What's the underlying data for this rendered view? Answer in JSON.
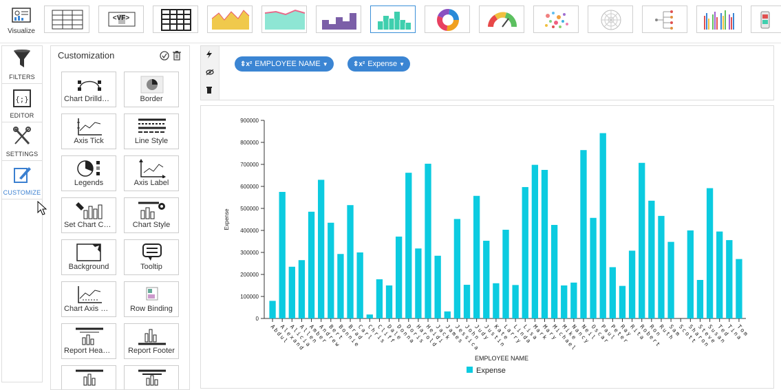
{
  "toolbar": {
    "visualize_label": "Visualize",
    "chart_thumbnails": [
      "table-icon",
      "vf-icon",
      "grid-table-icon",
      "area-chart-icon",
      "stream-chart-icon",
      "step-chart-icon",
      "histogram-icon",
      "donut-chart-icon",
      "gauge-icon",
      "bubble-chart-icon",
      "radial-chart-icon",
      "tree-chart-icon",
      "multi-bar-icon",
      "mobile-icon"
    ],
    "vf_text": "<VF>"
  },
  "nav": {
    "items": [
      {
        "label": "FILTERS",
        "icon": "funnel-icon"
      },
      {
        "label": "EDITOR",
        "icon": "code-braces-icon"
      },
      {
        "label": "SETTINGS",
        "icon": "tools-icon"
      },
      {
        "label": "CUSTOMIZE",
        "icon": "customize-icon"
      }
    ]
  },
  "customization": {
    "title": "Customization",
    "tiles": [
      {
        "label": "Chart Drilldown",
        "icon": "drilldown-icon"
      },
      {
        "label": "Border",
        "icon": "border-icon"
      },
      {
        "label": "Axis Tick",
        "icon": "axis-tick-icon"
      },
      {
        "label": "Line Style",
        "icon": "line-style-icon"
      },
      {
        "label": "Legends",
        "icon": "legends-icon"
      },
      {
        "label": "Axis Label",
        "icon": "axis-label-icon"
      },
      {
        "label": "Set Chart Color",
        "icon": "chart-color-icon"
      },
      {
        "label": "Chart Style",
        "icon": "chart-style-icon"
      },
      {
        "label": "Background",
        "icon": "background-icon"
      },
      {
        "label": "Tooltip",
        "icon": "tooltip-icon"
      },
      {
        "label": "Chart Axis Range",
        "icon": "axis-range-icon"
      },
      {
        "label": "Row Binding",
        "icon": "row-binding-icon"
      },
      {
        "label": "Report Header",
        "icon": "report-header-icon"
      },
      {
        "label": "Report Footer",
        "icon": "report-footer-icon"
      },
      {
        "label": "",
        "icon": "report-icon"
      },
      {
        "label": "",
        "icon": "report-icon"
      }
    ]
  },
  "fields": {
    "pills": [
      {
        "label": "EMPLOYEE NAME",
        "symbol": "x²"
      },
      {
        "label": "Expense",
        "symbol": "x²"
      }
    ]
  },
  "colors": {
    "accent": "#3b85d3",
    "bar": "#0ccbe0"
  },
  "chart_data": {
    "type": "bar",
    "title": "",
    "xlabel": "EMPLOYEE NAME",
    "ylabel": "Expense",
    "ylim": [
      0,
      900000
    ],
    "yticks": [
      "0",
      "100000",
      "200000",
      "300000",
      "400000",
      "500000",
      "600000",
      "700000",
      "800000",
      "900000"
    ],
    "legend": "bottom-center",
    "series": [
      {
        "name": "Expense",
        "values": [
          80000,
          575000,
          235000,
          265000,
          485000,
          630000,
          435000,
          293000,
          515000,
          300000,
          18000,
          178000,
          150000,
          372000,
          662000,
          318000,
          703000,
          285000,
          32000,
          452000,
          153000,
          557000,
          353000,
          160000,
          403000,
          152000,
          597000,
          698000,
          675000,
          425000,
          150000,
          163000,
          765000,
          457000,
          842000,
          233000,
          148000,
          308000,
          707000,
          535000,
          466000,
          348000,
          0,
          400000,
          175000,
          592000,
          395000,
          356000,
          270000
        ]
      }
    ],
    "categories": [
      "Abdul",
      "Alexand",
      "Alicia",
      "Allen",
      "Amber",
      "Andrew",
      "Bert",
      "Bonnie",
      "Brad",
      "Carl",
      "Chris",
      "Cliff",
      "Dale",
      "Donna",
      "Doris",
      "Harold",
      "Heidi",
      "Jack",
      "James",
      "Jessica",
      "John",
      "Judy",
      "Justin",
      "Kate",
      "Larry",
      "Linda",
      "Lisa",
      "Mark",
      "Mary",
      "Michael",
      "Mike",
      "Nancy",
      "Neil",
      "Oscar",
      "Paul",
      "Peter",
      "Ray",
      "Rita",
      "Robert",
      "Ron",
      "Ruth",
      "Sam",
      "Scott",
      "Sharon",
      "Steve",
      "Susan",
      "Ted",
      "Tina",
      "Tom"
    ]
  }
}
